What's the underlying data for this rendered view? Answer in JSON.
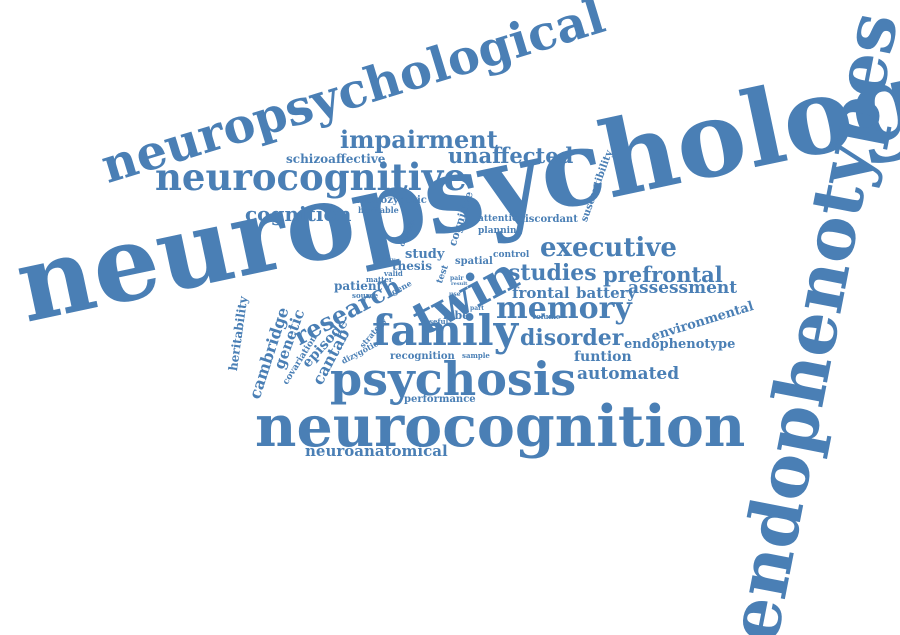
{
  "colors": {
    "word": "#4a7fb5",
    "background": "#ffffff"
  },
  "words": [
    "neuropsychology",
    "endophenotypes",
    "neuropsychological",
    "neurocognition",
    "neurocognitive",
    "psychosis",
    "family",
    "twin",
    "memory",
    "research",
    "executive",
    "studies",
    "prefrontal",
    "impairment",
    "unaffected",
    "cognition",
    "assessment",
    "frontal",
    "battery",
    "disorder",
    "schizoaffective",
    "endophenotype",
    "environmental",
    "funtion",
    "automated",
    "cantab",
    "cambridge",
    "genetic",
    "episode",
    "heritability",
    "neuroanatomical",
    "performance",
    "recognition",
    "susceptibility",
    "monozygotic",
    "heritable",
    "cognitive",
    "discordant",
    "attention",
    "planning",
    "study",
    "spatial",
    "control",
    "thesis",
    "patient",
    "source",
    "lobe",
    "covariation",
    "dizygotic",
    "strategy",
    "matter",
    "valid",
    "gene",
    "design",
    "ability",
    "volume",
    "useful",
    "sample",
    "test",
    "pair",
    "result",
    "part",
    "use",
    "group"
  ]
}
